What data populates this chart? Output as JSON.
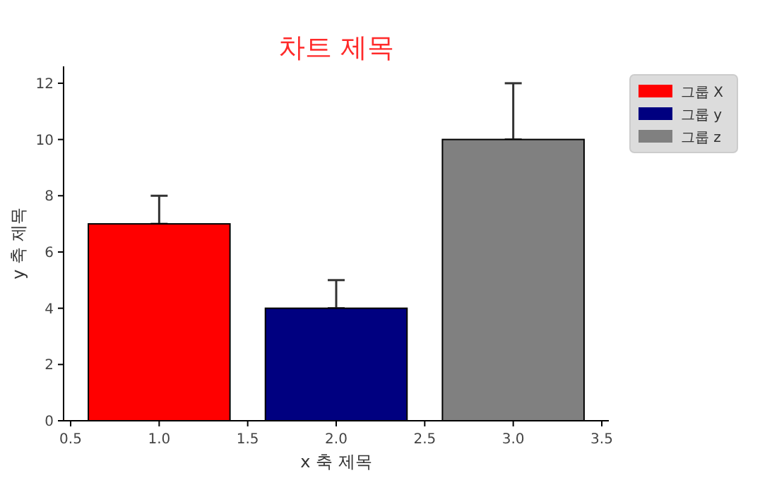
{
  "chart_data": {
    "type": "bar",
    "title": "차트 제목",
    "xlabel": "x 축 제목",
    "ylabel": "y 축 제목",
    "xlim": [
      0.46,
      3.54
    ],
    "xticks": [
      {
        "value": 0.5,
        "label": "0.5"
      },
      {
        "value": 1,
        "label": "1.0"
      },
      {
        "value": 1.5,
        "label": "1.5"
      },
      {
        "value": 2,
        "label": "2.0"
      },
      {
        "value": 2.5,
        "label": "2.5"
      },
      {
        "value": 3,
        "label": "3.0"
      },
      {
        "value": 3.5,
        "label": "3.5"
      }
    ],
    "ylim": [
      0,
      12.6
    ],
    "yticks": [
      0,
      2,
      4,
      6,
      8,
      10,
      12
    ],
    "series": [
      {
        "name": "그룹 X",
        "color": "#ff0000",
        "x": [
          1
        ],
        "values": [
          7
        ],
        "errors": [
          [
            7,
            8
          ]
        ]
      },
      {
        "name": "그룹 y",
        "color": "#000080",
        "x": [
          2
        ],
        "values": [
          4
        ],
        "errors": [
          [
            4,
            5
          ]
        ]
      },
      {
        "name": "그룹 z",
        "color": "#808080",
        "x": [
          3
        ],
        "values": [
          10
        ],
        "errors": [
          [
            10,
            12
          ]
        ]
      }
    ],
    "grid": false,
    "legend": "top right"
  }
}
